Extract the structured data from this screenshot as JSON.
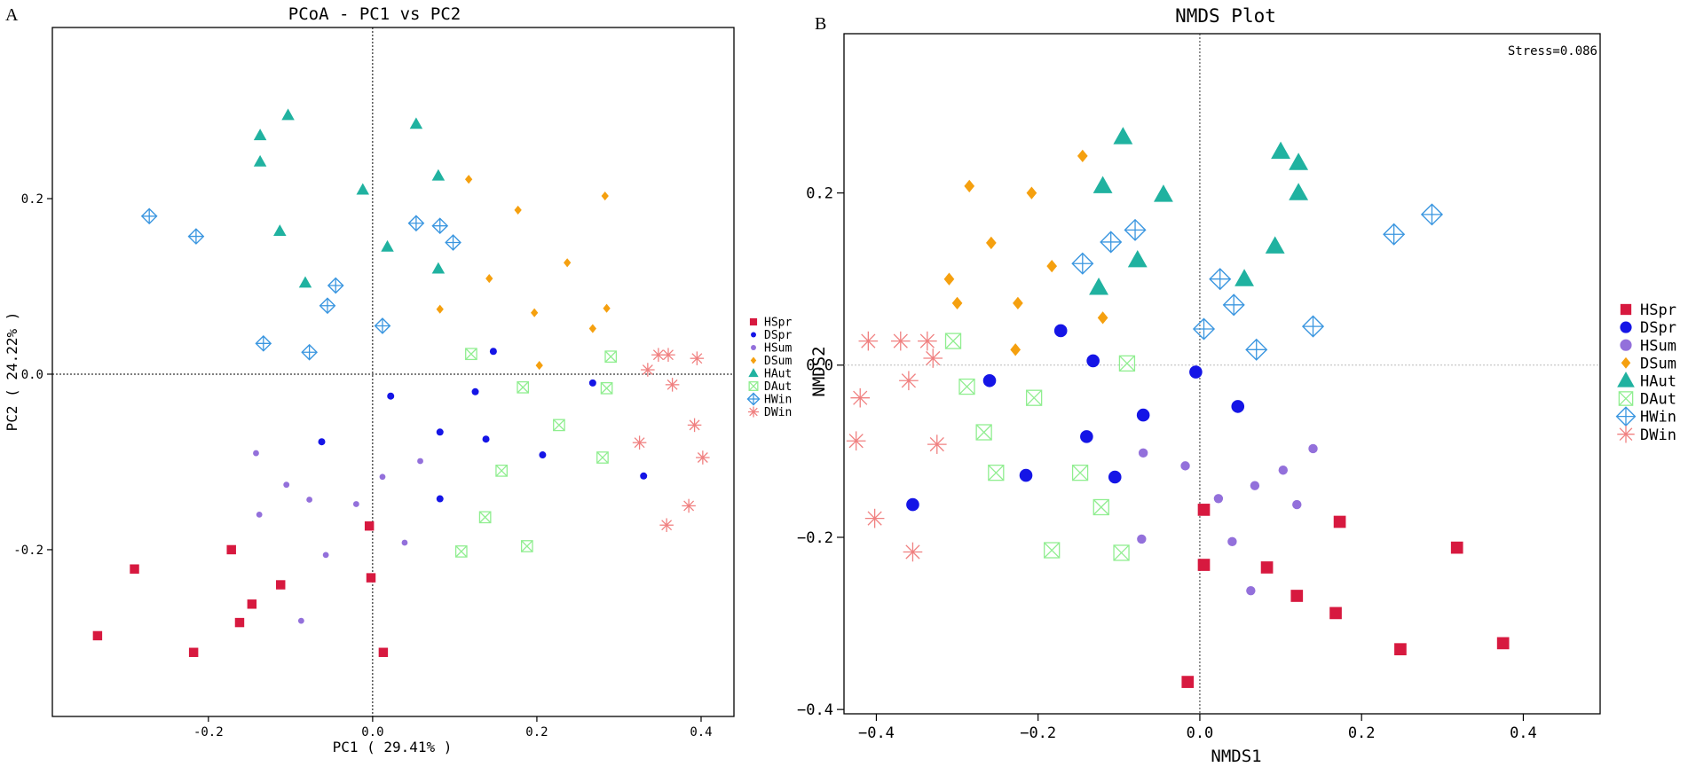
{
  "groups": [
    {
      "name": "HSpr",
      "color": "#d7193f",
      "shape": "square"
    },
    {
      "name": "DSpr",
      "color": "#1515e6",
      "shape": "circle"
    },
    {
      "name": "HSum",
      "color": "#9370db",
      "shape": "circle"
    },
    {
      "name": "DSum",
      "color": "#f5a00f",
      "shape": "diamond"
    },
    {
      "name": "HAut",
      "color": "#20b2a0",
      "shape": "triangle"
    },
    {
      "name": "DAut",
      "color": "#90ee90",
      "shape": "boxx"
    },
    {
      "name": "HWin",
      "color": "#3a96e0",
      "shape": "diamondplus"
    },
    {
      "name": "DWin",
      "color": "#f08080",
      "shape": "asterisk"
    }
  ],
  "chart_data": [
    {
      "type": "scatter",
      "panel": "A",
      "title": "PCoA - PC1 vs PC2",
      "xlabel": "PC1 ( 29.41% )",
      "ylabel": "PC2 ( 24.22% )",
      "xlim": [
        -0.39,
        0.44
      ],
      "ylim": [
        -0.39,
        0.395
      ],
      "xticks": [
        -0.2,
        0.0,
        0.2,
        0.4
      ],
      "xtick_labels": [
        "-0.2",
        "0.0",
        "0.2",
        "0.4"
      ],
      "yticks": [
        -0.2,
        0.0,
        0.2
      ],
      "ytick_labels": [
        "-0.2",
        "0.0",
        "0.2"
      ],
      "reference_lines": {
        "x": 0,
        "y": 0
      },
      "series": [
        {
          "name": "HSpr",
          "points": [
            [
              -0.335,
              -0.298
            ],
            [
              -0.29,
              -0.222
            ],
            [
              -0.218,
              -0.317
            ],
            [
              -0.172,
              -0.2
            ],
            [
              -0.162,
              -0.283
            ],
            [
              -0.147,
              -0.262
            ],
            [
              -0.112,
              -0.24
            ],
            [
              -0.004,
              -0.173
            ],
            [
              -0.002,
              -0.232
            ],
            [
              0.013,
              -0.317
            ]
          ]
        },
        {
          "name": "DSpr",
          "points": [
            [
              -0.062,
              -0.077
            ],
            [
              0.022,
              -0.025
            ],
            [
              0.082,
              -0.066
            ],
            [
              0.082,
              -0.142
            ],
            [
              0.125,
              -0.02
            ],
            [
              0.138,
              -0.074
            ],
            [
              0.147,
              0.026
            ],
            [
              0.207,
              -0.092
            ],
            [
              0.268,
              -0.01
            ],
            [
              0.33,
              -0.116
            ]
          ]
        },
        {
          "name": "HSum",
          "points": [
            [
              -0.142,
              -0.09
            ],
            [
              -0.138,
              -0.16
            ],
            [
              -0.105,
              -0.126
            ],
            [
              -0.077,
              -0.143
            ],
            [
              -0.057,
              -0.206
            ],
            [
              -0.087,
              -0.281
            ],
            [
              -0.02,
              -0.148
            ],
            [
              0.012,
              -0.117
            ],
            [
              0.039,
              -0.192
            ],
            [
              0.058,
              -0.099
            ]
          ]
        },
        {
          "name": "DSum",
          "points": [
            [
              0.082,
              0.074
            ],
            [
              0.117,
              0.222
            ],
            [
              0.142,
              0.109
            ],
            [
              0.177,
              0.187
            ],
            [
              0.197,
              0.07
            ],
            [
              0.203,
              0.01
            ],
            [
              0.237,
              0.127
            ],
            [
              0.268,
              0.052
            ],
            [
              0.283,
              0.203
            ],
            [
              0.285,
              0.075
            ]
          ]
        },
        {
          "name": "HAut",
          "points": [
            [
              -0.137,
              0.272
            ],
            [
              -0.137,
              0.242
            ],
            [
              -0.113,
              0.163
            ],
            [
              -0.103,
              0.295
            ],
            [
              -0.082,
              0.104
            ],
            [
              -0.012,
              0.21
            ],
            [
              0.018,
              0.145
            ],
            [
              0.053,
              0.285
            ],
            [
              0.08,
              0.226
            ],
            [
              0.08,
              0.12
            ]
          ]
        },
        {
          "name": "DAut",
          "points": [
            [
              0.108,
              -0.202
            ],
            [
              0.12,
              0.023
            ],
            [
              0.137,
              -0.163
            ],
            [
              0.157,
              -0.11
            ],
            [
              0.183,
              -0.015
            ],
            [
              0.188,
              -0.196
            ],
            [
              0.227,
              -0.058
            ],
            [
              0.28,
              -0.095
            ],
            [
              0.285,
              -0.016
            ],
            [
              0.29,
              0.02
            ]
          ]
        },
        {
          "name": "HWin",
          "points": [
            [
              -0.272,
              0.18
            ],
            [
              -0.215,
              0.157
            ],
            [
              -0.133,
              0.035
            ],
            [
              -0.077,
              0.025
            ],
            [
              -0.055,
              0.078
            ],
            [
              -0.045,
              0.101
            ],
            [
              0.012,
              0.055
            ],
            [
              0.053,
              0.172
            ],
            [
              0.082,
              0.169
            ],
            [
              0.098,
              0.15
            ]
          ]
        },
        {
          "name": "DWin",
          "points": [
            [
              0.325,
              -0.078
            ],
            [
              0.335,
              0.005
            ],
            [
              0.348,
              0.022
            ],
            [
              0.358,
              -0.172
            ],
            [
              0.36,
              0.022
            ],
            [
              0.365,
              -0.012
            ],
            [
              0.385,
              -0.15
            ],
            [
              0.392,
              -0.058
            ],
            [
              0.395,
              0.018
            ],
            [
              0.402,
              -0.095
            ]
          ]
        }
      ]
    },
    {
      "type": "scatter",
      "panel": "B",
      "title": "NMDS Plot",
      "xlabel": "NMDS1",
      "ylabel": "NMDS2",
      "annotation": "Stress=0.086",
      "xlim": [
        -0.44,
        0.495
      ],
      "ylim": [
        -0.405,
        0.385
      ],
      "xticks": [
        -0.4,
        -0.2,
        0.0,
        0.2,
        0.4
      ],
      "xtick_labels": [
        "−0.4",
        "−0.2",
        "0.0",
        "0.2",
        "0.4"
      ],
      "yticks": [
        -0.4,
        -0.2,
        0.0,
        0.2
      ],
      "ytick_labels": [
        "−0.4",
        "−0.2",
        "0.0",
        "0.2"
      ],
      "reference_lines": {
        "x": 0,
        "y": 0
      },
      "series": [
        {
          "name": "HSpr",
          "points": [
            [
              -0.015,
              -0.368
            ],
            [
              0.005,
              -0.232
            ],
            [
              0.005,
              -0.168
            ],
            [
              0.083,
              -0.235
            ],
            [
              0.12,
              -0.268
            ],
            [
              0.168,
              -0.288
            ],
            [
              0.173,
              -0.182
            ],
            [
              0.248,
              -0.33
            ],
            [
              0.318,
              -0.212
            ],
            [
              0.375,
              -0.323
            ]
          ]
        },
        {
          "name": "DSpr",
          "points": [
            [
              -0.355,
              -0.162
            ],
            [
              -0.26,
              -0.018
            ],
            [
              -0.215,
              -0.128
            ],
            [
              -0.172,
              0.04
            ],
            [
              -0.14,
              -0.083
            ],
            [
              -0.132,
              0.005
            ],
            [
              -0.105,
              -0.13
            ],
            [
              -0.07,
              -0.058
            ],
            [
              -0.005,
              -0.008
            ],
            [
              0.047,
              -0.048
            ]
          ]
        },
        {
          "name": "HSum",
          "points": [
            [
              -0.072,
              -0.202
            ],
            [
              -0.07,
              -0.102
            ],
            [
              -0.018,
              -0.117
            ],
            [
              0.023,
              -0.155
            ],
            [
              0.04,
              -0.205
            ],
            [
              0.063,
              -0.262
            ],
            [
              0.068,
              -0.14
            ],
            [
              0.103,
              -0.122
            ],
            [
              0.12,
              -0.162
            ],
            [
              0.14,
              -0.097
            ]
          ]
        },
        {
          "name": "DSum",
          "points": [
            [
              -0.31,
              0.1
            ],
            [
              -0.3,
              0.072
            ],
            [
              -0.285,
              0.208
            ],
            [
              -0.258,
              0.142
            ],
            [
              -0.228,
              0.018
            ],
            [
              -0.225,
              0.072
            ],
            [
              -0.208,
              0.2
            ],
            [
              -0.183,
              0.115
            ],
            [
              -0.145,
              0.243
            ],
            [
              -0.12,
              0.055
            ]
          ]
        },
        {
          "name": "HAut",
          "points": [
            [
              -0.12,
              0.208
            ],
            [
              -0.125,
              0.09
            ],
            [
              -0.095,
              0.265
            ],
            [
              -0.077,
              0.122
            ],
            [
              -0.045,
              0.198
            ],
            [
              0.055,
              0.1
            ],
            [
              0.093,
              0.138
            ],
            [
              0.1,
              0.248
            ],
            [
              0.122,
              0.235
            ],
            [
              0.122,
              0.2
            ]
          ]
        },
        {
          "name": "DAut",
          "points": [
            [
              -0.305,
              0.028
            ],
            [
              -0.288,
              -0.025
            ],
            [
              -0.267,
              -0.078
            ],
            [
              -0.252,
              -0.125
            ],
            [
              -0.205,
              -0.038
            ],
            [
              -0.183,
              -0.215
            ],
            [
              -0.148,
              -0.125
            ],
            [
              -0.122,
              -0.165
            ],
            [
              -0.097,
              -0.218
            ],
            [
              -0.09,
              0.002
            ]
          ]
        },
        {
          "name": "HWin",
          "points": [
            [
              -0.145,
              0.118
            ],
            [
              -0.11,
              0.143
            ],
            [
              -0.08,
              0.157
            ],
            [
              0.005,
              0.042
            ],
            [
              0.025,
              0.1
            ],
            [
              0.042,
              0.07
            ],
            [
              0.07,
              0.018
            ],
            [
              0.14,
              0.045
            ],
            [
              0.24,
              0.152
            ],
            [
              0.287,
              0.175
            ]
          ]
        },
        {
          "name": "DWin",
          "points": [
            [
              -0.425,
              -0.088
            ],
            [
              -0.42,
              -0.038
            ],
            [
              -0.41,
              0.028
            ],
            [
              -0.402,
              -0.178
            ],
            [
              -0.37,
              0.028
            ],
            [
              -0.36,
              -0.018
            ],
            [
              -0.355,
              -0.217
            ],
            [
              -0.337,
              0.028
            ],
            [
              -0.33,
              0.008
            ],
            [
              -0.325,
              -0.092
            ]
          ]
        }
      ]
    }
  ]
}
